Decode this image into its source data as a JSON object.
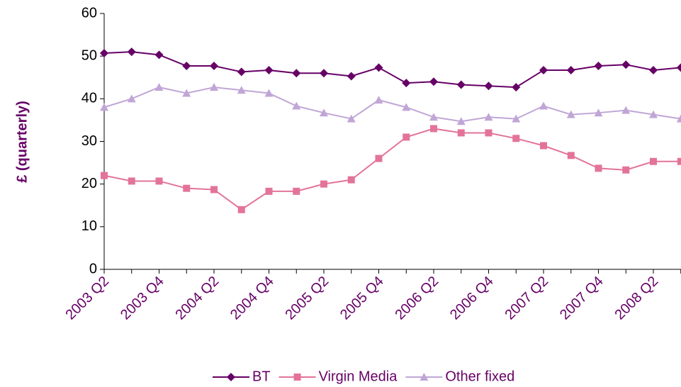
{
  "chart_data": {
    "type": "line",
    "y_label": "£ (quarterly)",
    "categories": [
      "2003 Q2",
      null,
      "2003 Q4",
      null,
      "2004 Q2",
      null,
      "2004 Q4",
      null,
      "2005 Q2",
      null,
      "2005 Q4",
      null,
      "2006 Q2",
      null,
      "2006 Q4",
      null,
      "2007 Q2",
      null,
      "2007 Q4",
      null,
      "2008 Q2",
      null
    ],
    "series": [
      {
        "name": "BT",
        "color": "#660066",
        "marker": "diamond",
        "values": [
          50.7,
          51,
          50.3,
          47.7,
          47.7,
          46.3,
          46.7,
          46,
          46,
          45.3,
          47.3,
          43.7,
          44,
          43.3,
          43,
          42.7,
          46.7,
          46.7,
          47.7,
          48,
          46.7,
          47.3
        ]
      },
      {
        "name": "Virgin Media",
        "color": "#e3739a",
        "marker": "square",
        "values": [
          22,
          20.7,
          20.7,
          19,
          18.7,
          14,
          18.3,
          18.3,
          20,
          21,
          26,
          31,
          33,
          32,
          32,
          30.7,
          29,
          26.7,
          23.7,
          23.3,
          25.3,
          25.3
        ]
      },
      {
        "name": "Other fixed",
        "color": "#c0a6d6",
        "marker": "triangle",
        "values": [
          38,
          40,
          42.7,
          41.3,
          42.7,
          42,
          41.3,
          38.3,
          36.7,
          35.3,
          39.7,
          38,
          35.7,
          34.7,
          35.7,
          35.3,
          38.3,
          36.3,
          36.7,
          37.3,
          36.3,
          35.3
        ]
      }
    ],
    "ylim": [
      0,
      60
    ],
    "yticks": [
      0,
      10,
      20,
      30,
      40,
      50,
      60
    ],
    "grid": false,
    "legend": "bottom"
  }
}
